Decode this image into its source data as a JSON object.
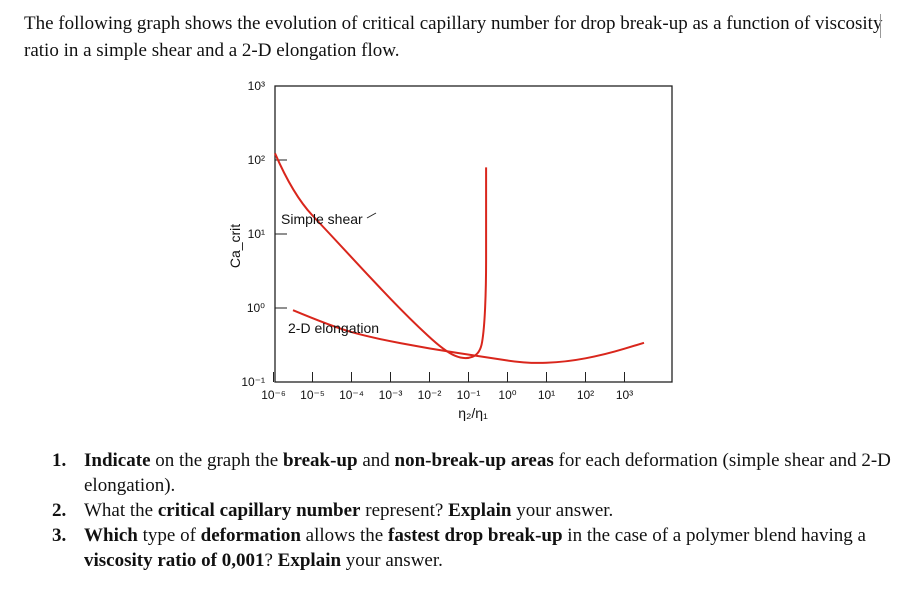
{
  "intro": "The following graph shows the evolution of critical capillary number for drop break-up as a function of viscosity ratio in a simple shear and a 2-D elongation flow.",
  "chart_data": {
    "type": "line",
    "xscale": "log",
    "yscale": "log",
    "xlim_exp": [
      -6.5,
      3.5
    ],
    "ylim_exp": [
      -1,
      3
    ],
    "x_ticks": [
      {
        "exp": -6,
        "label": "10⁻⁶"
      },
      {
        "exp": -5,
        "label": "10⁻⁵"
      },
      {
        "exp": -4,
        "label": "10⁻⁴"
      },
      {
        "exp": -3,
        "label": "10⁻³"
      },
      {
        "exp": -2,
        "label": "10⁻²"
      },
      {
        "exp": -1,
        "label": "10⁻¹"
      },
      {
        "exp": 0,
        "label": "10⁰"
      },
      {
        "exp": 1,
        "label": "10¹"
      },
      {
        "exp": 2,
        "label": "10²"
      },
      {
        "exp": 3,
        "label": "10³"
      }
    ],
    "y_ticks": [
      {
        "exp": -1,
        "label": "10⁻¹"
      },
      {
        "exp": 0,
        "label": "10⁰"
      },
      {
        "exp": 1,
        "label": "10¹"
      },
      {
        "exp": 2,
        "label": "10²"
      },
      {
        "exp": 3,
        "label": "10³"
      }
    ],
    "xlabel": "η₂/η₁",
    "ylabel": "Ca_crit",
    "series": [
      {
        "name": "Simple shear",
        "color": "#d9261c",
        "points_exp": [
          [
            -6.5,
            2.09
          ],
          [
            -5.5,
            1.53
          ],
          [
            -4.5,
            0.97
          ],
          [
            -3.5,
            0.4
          ],
          [
            -2.5,
            -0.15
          ],
          [
            -1.6,
            -0.59
          ],
          [
            -1.1,
            -0.7
          ],
          [
            -0.7,
            -0.62
          ],
          [
            -0.6,
            -0.3
          ],
          [
            -0.55,
            0.3
          ],
          [
            -0.55,
            1.02
          ],
          [
            -0.55,
            1.9
          ]
        ]
      },
      {
        "name": "2-D elongation",
        "color": "#d9261c",
        "points_exp": [
          [
            -5.5,
            -0.03
          ],
          [
            -4.5,
            -0.25
          ],
          [
            -3.5,
            -0.4
          ],
          [
            -2.0,
            -0.55
          ],
          [
            -0.5,
            -0.67
          ],
          [
            0.5,
            -0.75
          ],
          [
            1.5,
            -0.73
          ],
          [
            2.5,
            -0.63
          ],
          [
            3.5,
            -0.47
          ]
        ]
      }
    ],
    "annotations": [
      {
        "text": "Simple shear",
        "series": "Simple shear"
      },
      {
        "text": "2-D elongation",
        "series": "2-D elongation"
      }
    ]
  },
  "questions": [
    {
      "num": "1.",
      "parts": [
        {
          "t": "Indicate",
          "b": true
        },
        {
          "t": " on the graph the ",
          "b": false
        },
        {
          "t": "break-up",
          "b": true
        },
        {
          "t": " and ",
          "b": false
        },
        {
          "t": "non-break-up areas",
          "b": true
        },
        {
          "t": " for each deformation (simple shear and 2-D elongation).",
          "b": false
        }
      ]
    },
    {
      "num": "2.",
      "parts": [
        {
          "t": "What the ",
          "b": false
        },
        {
          "t": "critical capillary number",
          "b": true
        },
        {
          "t": " represent? ",
          "b": false
        },
        {
          "t": "Explain",
          "b": true
        },
        {
          "t": " your answer.",
          "b": false
        }
      ]
    },
    {
      "num": "3.",
      "parts": [
        {
          "t": "Which",
          "b": true
        },
        {
          "t": " type of ",
          "b": false
        },
        {
          "t": "deformation",
          "b": true
        },
        {
          "t": " allows the ",
          "b": false
        },
        {
          "t": "fastest drop break-up",
          "b": true
        },
        {
          "t": " in the case of a polymer blend having a ",
          "b": false
        },
        {
          "t": "viscosity ratio of 0,001",
          "b": true
        },
        {
          "t": "? ",
          "b": false
        },
        {
          "t": "Explain",
          "b": true
        },
        {
          "t": " your answer.",
          "b": false
        }
      ]
    }
  ]
}
